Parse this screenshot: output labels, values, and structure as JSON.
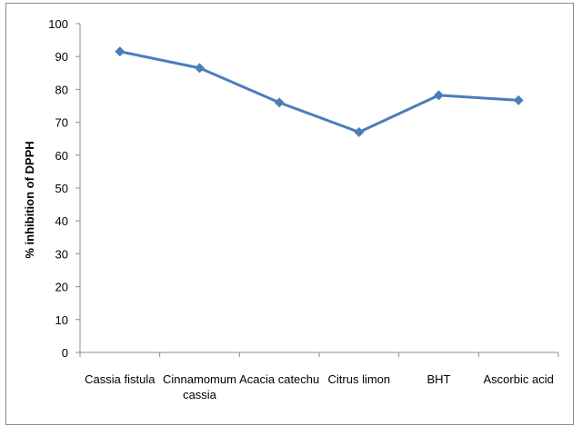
{
  "chart_data": {
    "type": "line",
    "categories": [
      [
        "Cassia fistula"
      ],
      [
        "Cinnamomum",
        "cassia"
      ],
      [
        "Acacia catechu"
      ],
      [
        "Citrus limon"
      ],
      [
        "BHT"
      ],
      [
        "Ascorbic acid"
      ]
    ],
    "series": [
      {
        "values": [
          91.5,
          86.5,
          76,
          67,
          78.2,
          76.7
        ],
        "color": "#4a7ebb"
      }
    ],
    "title": "",
    "xlabel": "",
    "ylabel": "% inhibition of DPPH",
    "ylim": [
      0,
      100
    ],
    "ytick_step": 10,
    "grid": false,
    "legend": "none",
    "marker": "diamond"
  }
}
